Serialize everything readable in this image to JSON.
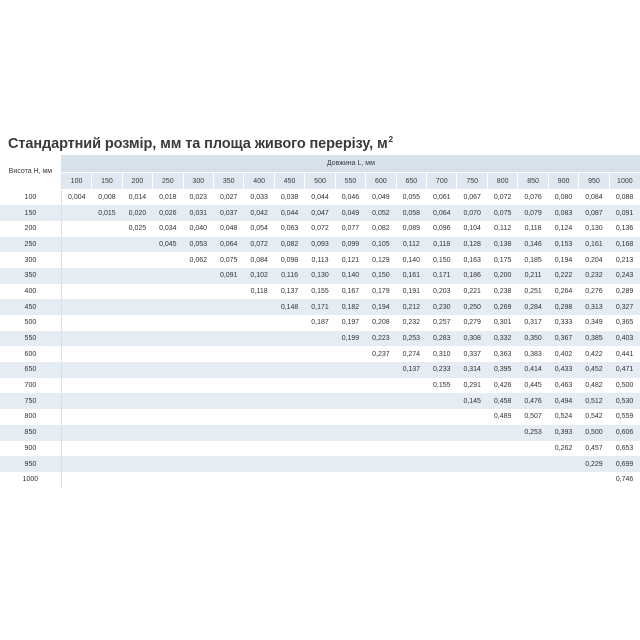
{
  "title": {
    "text": "Стандартний розмір, мм та площа живого перерізу, м",
    "superscript": "2"
  },
  "table": {
    "row_header_label": "Висота H, мм",
    "column_group_label": "Довжина L, мм",
    "columns": [
      "100",
      "150",
      "200",
      "250",
      "300",
      "350",
      "400",
      "450",
      "500",
      "550",
      "600",
      "650",
      "700",
      "750",
      "800",
      "850",
      "900",
      "950",
      "1000"
    ],
    "rows": [
      {
        "h": "100",
        "cells": [
          "0,004",
          "0,008",
          "0,014",
          "0,018",
          "0,023",
          "0,027",
          "0,033",
          "0,038",
          "0,044",
          "0,046",
          "0,049",
          "0,055",
          "0,061",
          "0,067",
          "0,072",
          "0,076",
          "0,080",
          "0,084",
          "0,088"
        ]
      },
      {
        "h": "150",
        "cells": [
          "",
          "0,015",
          "0,020",
          "0,026",
          "0,031",
          "0,037",
          "0,042",
          "0,044",
          "0,047",
          "0,049",
          "0,052",
          "0,058",
          "0,064",
          "0,070",
          "0,075",
          "0,079",
          "0,083",
          "0,087",
          "0,091"
        ]
      },
      {
        "h": "200",
        "cells": [
          "",
          "",
          "0,025",
          "0,034",
          "0,040",
          "0,048",
          "0,054",
          "0,063",
          "0,072",
          "0,077",
          "0,082",
          "0,089",
          "0,096",
          "0,104",
          "0,112",
          "0,118",
          "0,124",
          "0,130",
          "0,136"
        ]
      },
      {
        "h": "250",
        "cells": [
          "",
          "",
          "",
          "0,045",
          "0,053",
          "0,064",
          "0,072",
          "0,082",
          "0,093",
          "0,099",
          "0,105",
          "0,112",
          "0,118",
          "0,128",
          "0,138",
          "0,146",
          "0,153",
          "0,161",
          "0,168"
        ]
      },
      {
        "h": "300",
        "cells": [
          "",
          "",
          "",
          "",
          "0,062",
          "0,075",
          "0,084",
          "0,098",
          "0,113",
          "0,121",
          "0,129",
          "0,140",
          "0,150",
          "0,163",
          "0,175",
          "0,185",
          "0,194",
          "0,204",
          "0,213"
        ]
      },
      {
        "h": "350",
        "cells": [
          "",
          "",
          "",
          "",
          "",
          "0,091",
          "0,102",
          "0,116",
          "0,130",
          "0,140",
          "0,150",
          "0,161",
          "0,171",
          "0,186",
          "0,200",
          "0,211",
          "0,222",
          "0,232",
          "0,243"
        ]
      },
      {
        "h": "400",
        "cells": [
          "",
          "",
          "",
          "",
          "",
          "",
          "0,118",
          "0,137",
          "0,155",
          "0,167",
          "0,179",
          "0,191",
          "0,203",
          "0,221",
          "0,238",
          "0,251",
          "0,264",
          "0,276",
          "0,289"
        ]
      },
      {
        "h": "450",
        "cells": [
          "",
          "",
          "",
          "",
          "",
          "",
          "",
          "0,148",
          "0,171",
          "0,182",
          "0,194",
          "0,212",
          "0,230",
          "0,250",
          "0,269",
          "0,284",
          "0,298",
          "0,313",
          "0,327"
        ]
      },
      {
        "h": "500",
        "cells": [
          "",
          "",
          "",
          "",
          "",
          "",
          "",
          "",
          "0,187",
          "0,197",
          "0,208",
          "0,232",
          "0,257",
          "0,279",
          "0,301",
          "0,317",
          "0,333",
          "0,349",
          "0,365"
        ]
      },
      {
        "h": "550",
        "cells": [
          "",
          "",
          "",
          "",
          "",
          "",
          "",
          "",
          "",
          "0,199",
          "0,223",
          "0,253",
          "0,283",
          "0,308",
          "0,332",
          "0,350",
          "0,367",
          "0,385",
          "0,403"
        ]
      },
      {
        "h": "600",
        "cells": [
          "",
          "",
          "",
          "",
          "",
          "",
          "",
          "",
          "",
          "",
          "0,237",
          "0,274",
          "0,310",
          "0,337",
          "0,363",
          "0,383",
          "0,402",
          "0,422",
          "0,441"
        ]
      },
      {
        "h": "650",
        "cells": [
          "",
          "",
          "",
          "",
          "",
          "",
          "",
          "",
          "",
          "",
          "",
          "0,137",
          "0,233",
          "0,314",
          "0,395",
          "0,414",
          "0,433",
          "0,452",
          "0,471"
        ]
      },
      {
        "h": "700",
        "cells": [
          "",
          "",
          "",
          "",
          "",
          "",
          "",
          "",
          "",
          "",
          "",
          "",
          "0,155",
          "0,291",
          "0,426",
          "0,445",
          "0,463",
          "0,482",
          "0,500"
        ]
      },
      {
        "h": "750",
        "cells": [
          "",
          "",
          "",
          "",
          "",
          "",
          "",
          "",
          "",
          "",
          "",
          "",
          "",
          "0,145",
          "0,458",
          "0,476",
          "0,494",
          "0,512",
          "0,530"
        ]
      },
      {
        "h": "800",
        "cells": [
          "",
          "",
          "",
          "",
          "",
          "",
          "",
          "",
          "",
          "",
          "",
          "",
          "",
          "",
          "0,489",
          "0,507",
          "0,524",
          "0,542",
          "0,559"
        ]
      },
      {
        "h": "850",
        "cells": [
          "",
          "",
          "",
          "",
          "",
          "",
          "",
          "",
          "",
          "",
          "",
          "",
          "",
          "",
          "",
          "0,253",
          "0,393",
          "0,500",
          "0,606"
        ]
      },
      {
        "h": "900",
        "cells": [
          "",
          "",
          "",
          "",
          "",
          "",
          "",
          "",
          "",
          "",
          "",
          "",
          "",
          "",
          "",
          "",
          "0,262",
          "0,457",
          "0,653"
        ]
      },
      {
        "h": "950",
        "cells": [
          "",
          "",
          "",
          "",
          "",
          "",
          "",
          "",
          "",
          "",
          "",
          "",
          "",
          "",
          "",
          "",
          "",
          "0,229",
          "0,699"
        ]
      },
      {
        "h": "1000",
        "cells": [
          "",
          "",
          "",
          "",
          "",
          "",
          "",
          "",
          "",
          "",
          "",
          "",
          "",
          "",
          "",
          "",
          "",
          "",
          "0,746"
        ]
      }
    ]
  },
  "colors": {
    "header_band": "#d6e1ec",
    "stripe": "#e5ecf3",
    "text": "#333333"
  }
}
